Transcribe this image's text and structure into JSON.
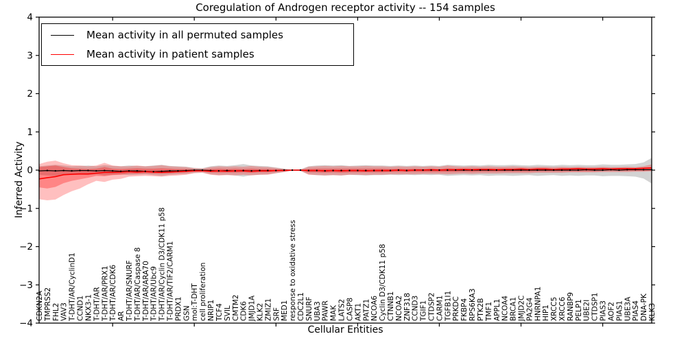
{
  "figure": {
    "background": "#ffffff",
    "accent_red": "#ff0000",
    "accent_black": "#000000",
    "band_gray": "#808080"
  },
  "chart_data": {
    "type": "line",
    "title": "Coregulation of Androgen receptor activity -- 154 samples",
    "xlabel": "Cellular Entities",
    "ylabel": "Inferred Activity",
    "ylim": [
      -4,
      4
    ],
    "ytick_values": [
      4,
      3,
      2,
      1,
      0,
      -1,
      -2,
      -3,
      -4
    ],
    "ytick_labels": [
      "4",
      "3",
      "2",
      "1",
      "0",
      "−1",
      "−2",
      "−3",
      "−4"
    ],
    "xtick_index_positions": [
      9,
      19,
      29,
      39,
      49,
      59,
      69
    ],
    "grid": false,
    "legend_position": "upper left",
    "categories": [
      "CDKN2A",
      "TMPRSS2",
      "FHL2",
      "VAV3",
      "T-DHT/AR/CyclinD1",
      "CCND1",
      "NKX3-1",
      "T-DHT/AR",
      "T-DHT/AR/PRX1",
      "T-DHT/AR/CDK6",
      "AR",
      "T-DHT/AR/SNURF",
      "T-DHT/AR/Caspase 8",
      "T-DHT/AR/ARA70",
      "T-DHT/AR/Ubc9",
      "T-DHT/AR/Cyclin D3/CDK11 p58",
      "T-DHT/AR/TIF2/CARM1",
      "PRDX1",
      "GSN",
      "mol:T-DHT",
      "cell proliferation",
      "NRIP1",
      "TCF4",
      "SVIL",
      "CMTM2",
      "CDK6",
      "JMJD1A",
      "KLK2",
      "ZMIZ1",
      "SRF",
      "MED1",
      "response to oxidative stress",
      "CDC2L1",
      "SNURF",
      "UBA3",
      "PAWR",
      "MAK",
      "LATS2",
      "CASP8",
      "AKT1",
      "PATZ1",
      "NCOA6",
      "Cyclin D3/CDK11 p58",
      "CTNNB1",
      "NCOA2",
      "ZNF318",
      "CCND3",
      "TGIF1",
      "CTDSP2",
      "CARM1",
      "TGFB1I1",
      "PRKDC",
      "FKBP4",
      "RPS6KA3",
      "PTK2B",
      "TMF1",
      "APPL1",
      "NCOA4",
      "BRCA1",
      "JMJD2C",
      "PA2G4",
      "HNRNPA1",
      "HIP1",
      "XRCC5",
      "XRCC6",
      "RANBP9",
      "PELP1",
      "UBE2I",
      "CTDSP1",
      "PIAS3",
      "AOF2",
      "PIAS1",
      "UBE3A",
      "PIAS4",
      "DNA-PK",
      "KLK3"
    ],
    "series": [
      {
        "name": "Mean activity in all permuted samples",
        "color": "#000000",
        "values": [
          -0.02,
          -0.01,
          -0.02,
          -0.01,
          -0.02,
          -0.01,
          -0.01,
          -0.02,
          -0.01,
          -0.02,
          -0.03,
          -0.02,
          -0.02,
          -0.03,
          -0.04,
          -0.03,
          -0.02,
          -0.02,
          -0.01,
          0.0,
          0.0,
          -0.01,
          -0.02,
          -0.01,
          -0.02,
          -0.01,
          -0.02,
          -0.01,
          -0.01,
          -0.01,
          0.0,
          0.0,
          0.0,
          -0.01,
          -0.01,
          -0.02,
          -0.01,
          -0.01,
          -0.01,
          -0.01,
          -0.01,
          -0.01,
          -0.01,
          -0.01,
          0.0,
          -0.01,
          0.0,
          0.0,
          0.0,
          0.0,
          0.0,
          0.0,
          0.0,
          0.0,
          0.0,
          0.0,
          0.0,
          0.0,
          0.0,
          0.0,
          0.0,
          0.0,
          0.0,
          0.0,
          0.0,
          0.0,
          0.0,
          0.01,
          0.0,
          0.0,
          0.01,
          0.0,
          0.01,
          0.01,
          0.01,
          0.01
        ]
      },
      {
        "name": "Mean activity in patient samples",
        "color": "#ff0000",
        "values": [
          -0.23,
          -0.2,
          -0.17,
          -0.12,
          -0.11,
          -0.1,
          -0.1,
          -0.08,
          -0.06,
          -0.06,
          -0.05,
          -0.04,
          -0.05,
          -0.04,
          -0.05,
          -0.06,
          -0.05,
          -0.04,
          -0.03,
          -0.02,
          -0.02,
          -0.03,
          -0.02,
          -0.03,
          -0.02,
          -0.02,
          -0.03,
          -0.02,
          -0.02,
          -0.01,
          -0.01,
          0.0,
          0.0,
          -0.01,
          -0.01,
          -0.02,
          -0.01,
          -0.02,
          -0.01,
          -0.01,
          -0.02,
          -0.01,
          -0.01,
          -0.01,
          0.0,
          -0.01,
          0.0,
          0.0,
          0.01,
          0.0,
          0.01,
          0.01,
          0.02,
          0.01,
          0.02,
          0.02,
          0.01,
          0.02,
          0.02,
          0.03,
          0.02,
          0.03,
          0.03,
          0.02,
          0.03,
          0.03,
          0.04,
          0.03,
          0.03,
          0.04,
          0.03,
          0.04,
          0.04,
          0.04,
          0.05,
          0.06
        ]
      }
    ],
    "bands": [
      {
        "name": "permuted-samples-spread",
        "color": "#808080",
        "alpha": 0.35,
        "upper": [
          0.1,
          0.12,
          0.14,
          0.12,
          0.1,
          0.11,
          0.12,
          0.1,
          0.13,
          0.11,
          0.1,
          0.12,
          0.11,
          0.1,
          0.12,
          0.14,
          0.11,
          0.1,
          0.09,
          0.06,
          0.05,
          0.1,
          0.12,
          0.11,
          0.13,
          0.16,
          0.12,
          0.11,
          0.1,
          0.07,
          0.04,
          0.01,
          0.02,
          0.1,
          0.12,
          0.13,
          0.12,
          0.13,
          0.11,
          0.12,
          0.13,
          0.12,
          0.12,
          0.11,
          0.12,
          0.11,
          0.12,
          0.11,
          0.12,
          0.11,
          0.14,
          0.13,
          0.12,
          0.13,
          0.12,
          0.14,
          0.13,
          0.13,
          0.14,
          0.13,
          0.12,
          0.14,
          0.13,
          0.12,
          0.14,
          0.13,
          0.14,
          0.13,
          0.13,
          0.15,
          0.14,
          0.14,
          0.15,
          0.16,
          0.2,
          0.32
        ],
        "lower": [
          -0.12,
          -0.14,
          -0.16,
          -0.13,
          -0.11,
          -0.12,
          -0.13,
          -0.11,
          -0.14,
          -0.12,
          -0.11,
          -0.13,
          -0.12,
          -0.11,
          -0.13,
          -0.15,
          -0.12,
          -0.11,
          -0.1,
          -0.07,
          -0.06,
          -0.11,
          -0.13,
          -0.12,
          -0.14,
          -0.17,
          -0.13,
          -0.12,
          -0.11,
          -0.08,
          -0.05,
          -0.01,
          -0.02,
          -0.11,
          -0.13,
          -0.14,
          -0.13,
          -0.14,
          -0.12,
          -0.13,
          -0.14,
          -0.13,
          -0.13,
          -0.12,
          -0.13,
          -0.12,
          -0.13,
          -0.12,
          -0.13,
          -0.12,
          -0.15,
          -0.14,
          -0.13,
          -0.14,
          -0.13,
          -0.15,
          -0.14,
          -0.14,
          -0.15,
          -0.14,
          -0.13,
          -0.15,
          -0.14,
          -0.13,
          -0.15,
          -0.14,
          -0.15,
          -0.14,
          -0.14,
          -0.16,
          -0.15,
          -0.15,
          -0.16,
          -0.17,
          -0.22,
          -0.35
        ]
      },
      {
        "name": "patient-samples-spread-outer",
        "color": "#ff0000",
        "alpha": 0.25,
        "upper": [
          0.16,
          0.22,
          0.25,
          0.18,
          0.13,
          0.12,
          0.1,
          0.12,
          0.19,
          0.12,
          0.1,
          0.1,
          0.12,
          0.1,
          0.11,
          0.13,
          0.1,
          0.09,
          0.08,
          0.05,
          0.04,
          0.08,
          0.1,
          0.09,
          0.1,
          0.09,
          0.11,
          0.09,
          0.08,
          0.06,
          0.03,
          0.01,
          0.01,
          0.09,
          0.1,
          0.11,
          0.1,
          0.11,
          0.1,
          0.1,
          0.11,
          0.1,
          0.1,
          0.09,
          0.1,
          0.09,
          0.1,
          0.09,
          0.1,
          0.09,
          0.12,
          0.1,
          0.09,
          0.1,
          0.09,
          0.1,
          0.09,
          0.09,
          0.1,
          0.09,
          0.08,
          0.09,
          0.09,
          0.08,
          0.09,
          0.08,
          0.09,
          0.08,
          0.08,
          0.09,
          0.08,
          0.08,
          0.09,
          0.08,
          0.1,
          0.15
        ],
        "lower": [
          -0.76,
          -0.79,
          -0.77,
          -0.65,
          -0.55,
          -0.48,
          -0.37,
          -0.28,
          -0.31,
          -0.25,
          -0.23,
          -0.17,
          -0.16,
          -0.15,
          -0.16,
          -0.17,
          -0.15,
          -0.14,
          -0.12,
          -0.08,
          -0.07,
          -0.12,
          -0.14,
          -0.13,
          -0.14,
          -0.12,
          -0.14,
          -0.12,
          -0.12,
          -0.08,
          -0.05,
          -0.01,
          -0.02,
          -0.12,
          -0.13,
          -0.14,
          -0.13,
          -0.14,
          -0.12,
          -0.12,
          -0.13,
          -0.12,
          -0.12,
          -0.11,
          -0.11,
          -0.11,
          -0.11,
          -0.1,
          -0.1,
          -0.1,
          -0.11,
          -0.1,
          -0.09,
          -0.1,
          -0.09,
          -0.09,
          -0.09,
          -0.08,
          -0.08,
          -0.08,
          -0.08,
          -0.07,
          -0.07,
          -0.07,
          -0.07,
          -0.06,
          -0.06,
          -0.06,
          -0.06,
          -0.05,
          -0.05,
          -0.05,
          -0.05,
          -0.04,
          -0.04,
          -0.03
        ]
      },
      {
        "name": "patient-samples-spread-inner",
        "color": "#ff0000",
        "alpha": 0.3,
        "upper": [
          0.08,
          0.1,
          0.12,
          0.08,
          0.05,
          0.04,
          0.03,
          0.04,
          0.08,
          0.04,
          0.03,
          0.04,
          0.05,
          0.04,
          0.04,
          0.05,
          0.04,
          0.03,
          0.03,
          0.02,
          0.01,
          0.03,
          0.04,
          0.03,
          0.04,
          0.03,
          0.04,
          0.03,
          0.03,
          0.02,
          0.01,
          0.0,
          0.0,
          0.03,
          0.04,
          0.04,
          0.04,
          0.04,
          0.04,
          0.04,
          0.04,
          0.04,
          0.04,
          0.03,
          0.04,
          0.03,
          0.04,
          0.03,
          0.04,
          0.03,
          0.05,
          0.04,
          0.04,
          0.04,
          0.04,
          0.04,
          0.04,
          0.04,
          0.04,
          0.04,
          0.03,
          0.04,
          0.04,
          0.03,
          0.04,
          0.03,
          0.04,
          0.03,
          0.03,
          0.04,
          0.03,
          0.03,
          0.04,
          0.03,
          0.05,
          0.08
        ],
        "lower": [
          -0.45,
          -0.48,
          -0.44,
          -0.34,
          -0.28,
          -0.24,
          -0.2,
          -0.15,
          -0.16,
          -0.13,
          -0.12,
          -0.09,
          -0.09,
          -0.08,
          -0.09,
          -0.09,
          -0.08,
          -0.07,
          -0.06,
          -0.04,
          -0.03,
          -0.06,
          -0.07,
          -0.06,
          -0.07,
          -0.06,
          -0.07,
          -0.06,
          -0.06,
          -0.04,
          -0.02,
          0.0,
          -0.01,
          -0.06,
          -0.06,
          -0.07,
          -0.06,
          -0.07,
          -0.06,
          -0.06,
          -0.06,
          -0.06,
          -0.06,
          -0.05,
          -0.05,
          -0.05,
          -0.05,
          -0.05,
          -0.05,
          -0.05,
          -0.05,
          -0.05,
          -0.04,
          -0.05,
          -0.04,
          -0.04,
          -0.04,
          -0.04,
          -0.04,
          -0.04,
          -0.04,
          -0.03,
          -0.03,
          -0.03,
          -0.03,
          -0.03,
          -0.03,
          -0.03,
          -0.03,
          -0.02,
          -0.02,
          -0.02,
          -0.02,
          -0.02,
          -0.02,
          -0.01
        ]
      }
    ]
  },
  "legend": {
    "items": [
      {
        "label": "Mean activity in all permuted samples",
        "color": "#000000"
      },
      {
        "label": "Mean activity in patient samples",
        "color": "#ff0000"
      }
    ]
  }
}
